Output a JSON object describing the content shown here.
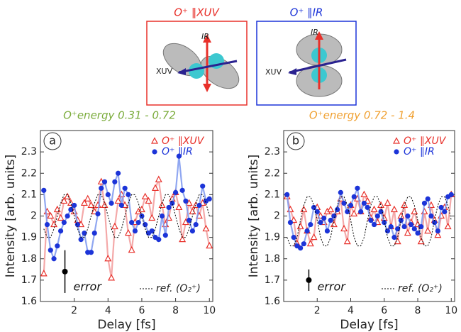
{
  "diagram": {
    "boxes": [
      {
        "title": "O⁺ ∥XUV",
        "ir_label": "IR",
        "xuv_label": "XUV"
      },
      {
        "title": "O⁺ ∥IR",
        "ir_label": "IR",
        "xuv_label": "XUV"
      }
    ]
  },
  "chart_data": [
    {
      "type": "line",
      "panel": "a",
      "title": "O⁺energy 0.31 - 0.72",
      "title_color": "#7aab3a",
      "xlabel": "Delay [fs]",
      "ylabel": "Intensity [arb. units]",
      "x": [
        0.2,
        0.4,
        0.6,
        0.8,
        1,
        1.2,
        1.4,
        1.6,
        1.8,
        2,
        2.2,
        2.4,
        2.6,
        2.8,
        3,
        3.2,
        3.4,
        3.6,
        3.8,
        4,
        4.2,
        4.4,
        4.6,
        4.8,
        5,
        5.2,
        5.4,
        5.6,
        5.8,
        6,
        6.2,
        6.4,
        6.6,
        6.8,
        7,
        7.2,
        7.4,
        7.6,
        7.8,
        8,
        8.2,
        8.4,
        8.6,
        8.8,
        9,
        9.2,
        9.4,
        9.6,
        9.8,
        10
      ],
      "xlim": [
        0,
        10.2
      ],
      "xticks": [
        2,
        4,
        6,
        8,
        10
      ],
      "ylim": [
        1.6,
        2.4
      ],
      "yticks": [
        1.6,
        1.7,
        1.8,
        1.9,
        2,
        2.1,
        2.2,
        2.3
      ],
      "series": [
        {
          "name": "O⁺ ∥XUV",
          "color": "#e8302a",
          "line_color": "#f29a9a",
          "marker": "triangle",
          "dashed": false,
          "values": [
            1.73,
            2.02,
            2.0,
            1.96,
            2.03,
            1.99,
            2.07,
            2.09,
            2.06,
            2.02,
            1.98,
            1.96,
            2.06,
            2.08,
            2.05,
            2.02,
            2.05,
            2.16,
            2.05,
            1.8,
            1.71,
            1.95,
            2.07,
            2.1,
            2.05,
            1.92,
            1.84,
            1.97,
            2.02,
            2.03,
            2.09,
            2.07,
            1.99,
            2.13,
            2.17,
            2.05,
            1.96,
            1.99,
            2.08,
            2.11,
            2.04,
            1.89,
            1.97,
            2.06,
            2.02,
            2.05,
            2.0,
            2.06,
            1.94,
            1.86
          ]
        },
        {
          "name": "O⁺ ∥IR",
          "color": "#1c34d8",
          "line_color": "#7c98ee",
          "marker": "circle",
          "dashed": false,
          "values": [
            2.12,
            1.96,
            1.84,
            1.8,
            1.86,
            1.93,
            1.97,
            2.0,
            2.03,
            2.05,
            1.96,
            1.89,
            1.92,
            1.83,
            1.83,
            1.92,
            2.01,
            2.13,
            2.16,
            2.1,
            2.06,
            2.16,
            2.2,
            2.05,
            2.13,
            2.1,
            1.97,
            1.93,
            1.97,
            2.0,
            1.96,
            1.92,
            1.93,
            1.9,
            1.89,
            2.0,
            1.91,
            2.04,
            2.06,
            2.11,
            2.28,
            2.12,
            2.07,
            1.98,
            1.93,
            1.96,
            2.05,
            2.14,
            2.07,
            2.08
          ]
        },
        {
          "name": "ref. (O₂⁺)",
          "color": "#000000",
          "line_color": "#000000",
          "marker": "none",
          "dashed": true,
          "values": [
            1.94,
            1.9,
            1.9,
            1.94,
            2.0,
            2.06,
            2.1,
            2.1,
            2.06,
            2.0,
            1.94,
            1.9,
            1.9,
            1.94,
            2.0,
            2.06,
            2.1,
            2.1,
            2.06,
            2.0,
            1.94,
            1.9,
            1.9,
            1.94,
            2.0,
            2.06,
            2.1,
            2.1,
            2.06,
            2.0,
            1.94,
            1.9,
            1.9,
            1.94,
            2.0,
            2.06,
            2.1,
            2.1,
            2.06,
            2.0,
            1.94,
            1.9,
            1.9,
            1.94,
            2.0,
            2.06,
            2.1,
            2.1,
            2.06,
            2.0
          ]
        }
      ],
      "error": {
        "name": "error",
        "x": 1.45,
        "value": 1.74,
        "error": 0.1
      }
    },
    {
      "type": "line",
      "panel": "b",
      "title": "O⁺energy 0.72 - 1.4",
      "title_color": "#f0a030",
      "xlabel": "Delay [fs]",
      "ylabel": "Intensity [arb. units]",
      "x": [
        0.2,
        0.4,
        0.6,
        0.8,
        1,
        1.2,
        1.4,
        1.6,
        1.8,
        2,
        2.2,
        2.4,
        2.6,
        2.8,
        3,
        3.2,
        3.4,
        3.6,
        3.8,
        4,
        4.2,
        4.4,
        4.6,
        4.8,
        5,
        5.2,
        5.4,
        5.6,
        5.8,
        6,
        6.2,
        6.4,
        6.6,
        6.8,
        7,
        7.2,
        7.4,
        7.6,
        7.8,
        8,
        8.2,
        8.4,
        8.6,
        8.8,
        9,
        9.2,
        9.4,
        9.6,
        9.8,
        10
      ],
      "xlim": [
        0,
        10.2
      ],
      "xticks": [
        2,
        4,
        6,
        8,
        10
      ],
      "ylim": [
        1.6,
        2.4
      ],
      "yticks": [
        1.6,
        1.7,
        1.8,
        1.9,
        2,
        2.1,
        2.2,
        2.3
      ],
      "series": [
        {
          "name": "O⁺ ∥XUV",
          "color": "#e8302a",
          "line_color": "#f29a9a",
          "marker": "triangle",
          "dashed": false,
          "values": [
            2.09,
            2.03,
            1.98,
            1.87,
            1.95,
            2.03,
            1.93,
            1.87,
            1.9,
            2.04,
            2.0,
            1.97,
            2.02,
            2.03,
            1.96,
            2.02,
            2.08,
            1.94,
            1.88,
            2.05,
            2.01,
            2.08,
            2.02,
            2.1,
            2.07,
            1.99,
            2.03,
            1.97,
            2.05,
            1.99,
            2.06,
            1.95,
            2.03,
            1.88,
            2.0,
            2.05,
            1.92,
            1.97,
            2.02,
            1.96,
            1.88,
            2.02,
            1.93,
            2.05,
            1.98,
            1.91,
            2.0,
            2.04,
            1.95,
            2.1
          ]
        },
        {
          "name": "O⁺ ∥IR",
          "color": "#1c34d8",
          "line_color": "#7c98ee",
          "marker": "circle",
          "dashed": false,
          "values": [
            2.1,
            1.97,
            1.9,
            1.86,
            1.85,
            1.87,
            1.93,
            1.96,
            2.04,
            2.02,
            1.97,
            1.99,
            1.93,
            1.98,
            2.0,
            2.03,
            2.11,
            2.06,
            2.02,
            2.05,
            2.09,
            2.13,
            2.02,
            2.06,
            2.04,
            1.98,
            1.96,
            2.0,
            2.02,
            1.97,
            1.93,
            1.95,
            1.9,
            1.94,
            1.98,
            1.95,
            2.0,
            1.96,
            1.94,
            1.92,
            1.95,
            2.06,
            2.08,
            2.0,
            1.97,
            1.93,
            2.04,
            2.02,
            2.09,
            2.1
          ]
        },
        {
          "name": "ref. (O₂⁺)",
          "color": "#000000",
          "line_color": "#000000",
          "marker": "none",
          "dashed": true,
          "values": [
            1.9,
            1.86,
            1.86,
            1.9,
            1.98,
            2.05,
            2.09,
            2.09,
            2.05,
            1.98,
            1.9,
            1.86,
            1.86,
            1.9,
            1.98,
            2.05,
            2.09,
            2.09,
            2.05,
            1.98,
            1.9,
            1.86,
            1.86,
            1.9,
            1.98,
            2.05,
            2.09,
            2.09,
            2.05,
            1.98,
            1.9,
            1.86,
            1.86,
            1.9,
            1.98,
            2.05,
            2.09,
            2.09,
            2.05,
            1.98,
            1.9,
            1.86,
            1.86,
            1.9,
            1.98,
            2.05,
            2.09,
            2.09,
            2.05,
            1.98
          ]
        }
      ],
      "error": {
        "name": "error",
        "x": 1.5,
        "value": 1.7,
        "error": 0.05
      }
    }
  ]
}
